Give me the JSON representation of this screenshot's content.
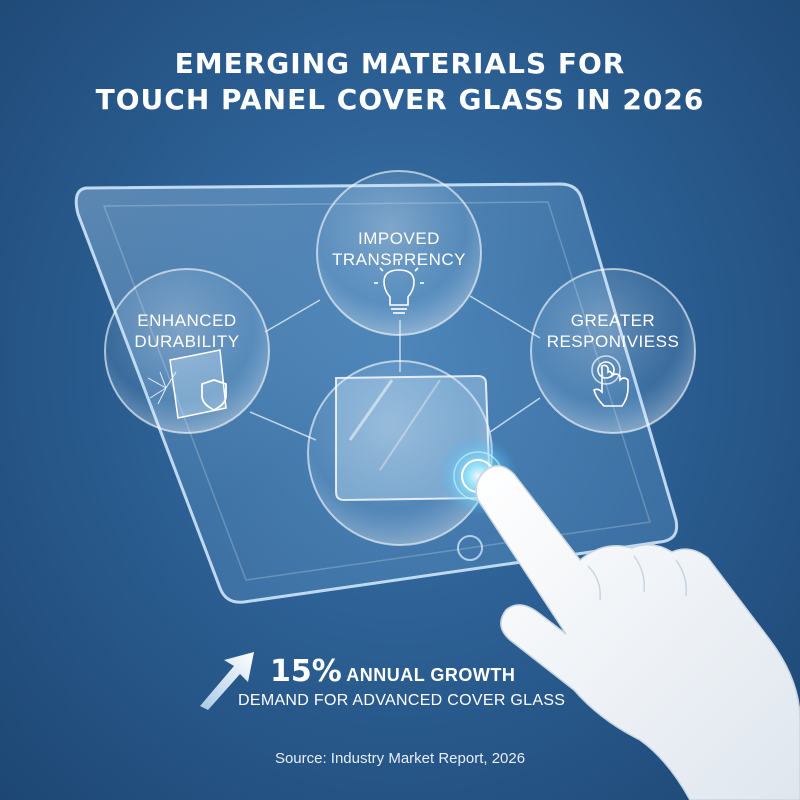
{
  "title": {
    "line1": "EMERGING MATERIALS FOR",
    "line2": "TOUCH PANEL COVER GLASS IN 2026"
  },
  "bubbles": {
    "transparency": {
      "line1": "IMPOVED",
      "line2": "TRANSPRENCY",
      "icon": "lightbulb-icon"
    },
    "durability": {
      "line1": "ENHANCED",
      "line2": "DURABILITY",
      "icon": "shield-icon"
    },
    "responsiveness": {
      "line1": "GREATER",
      "line2": "RESPONIVIESS",
      "icon": "touch-hand-icon"
    }
  },
  "growth": {
    "percent": "15%",
    "label": "ANNUAL GROWTH",
    "subtitle": "DEMAND FOR ADVANCED COVER GLASS",
    "icon": "arrow-up-icon"
  },
  "source": "Source: Industry Market Report, 2026",
  "colors": {
    "background": "#2c5f93",
    "glass": "#a9d3f5",
    "glow": "#7fe6ff",
    "text": "#ffffff"
  }
}
